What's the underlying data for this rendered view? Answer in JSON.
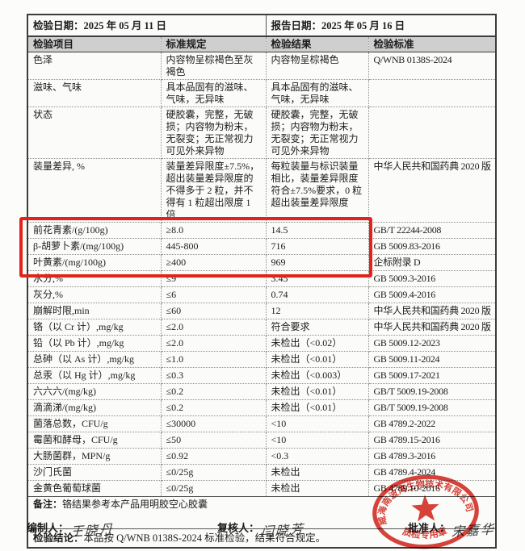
{
  "meta": {
    "inspection_date_label": "检验日期：",
    "inspection_date": "2025 年 05 月 11 日",
    "report_date_label": "报告日期：",
    "report_date": "2025 年 05 月 16 日"
  },
  "table": {
    "headers": [
      "检验项目",
      "标准规定",
      "检验结果",
      "检验标准"
    ],
    "rows": [
      {
        "item": "色泽",
        "spec": "内容物呈棕褐色至灰褐色",
        "result": "内容物呈棕褐色",
        "standard": "Q/WNB 0138S-2024"
      },
      {
        "item": "滋味、气味",
        "spec": "具本品固有的滋味、气味，无异味",
        "result": "具本品固有的滋味、气味，无异味",
        "standard": ""
      },
      {
        "item": "状态",
        "spec": "硬胶囊，完整，无破损；内容物为粉末，无裂变；无正常视力可见外来异物",
        "result": "硬胶囊，完整，无破损；内容物为粉末，无裂变；无正常视力可见外来异物",
        "standard": ""
      },
      {
        "item": "装量差异, %",
        "spec": "装量差异限度±7.5%，超出装量差异限度的不得多于 2 粒，并不得有 1 粒超出限度 1 倍",
        "result": "每粒装量与标识装量相比，装量差异限度符合±7.5%要求，0 粒超出装量差异限度",
        "standard": "中华人民共和国药典 2020 版"
      },
      {
        "item": "前花青素/(g/100g)",
        "spec": "≥8.0",
        "result": "14.5",
        "standard": "GB/T 22244-2008"
      },
      {
        "item": "β-胡萝卜素/(mg/100g)",
        "spec": "445-800",
        "result": "716",
        "standard": "GB 5009.83-2016"
      },
      {
        "item": "叶黄素/(mg/100g)",
        "spec": "≥400",
        "result": "969",
        "standard": "企标附录 D"
      },
      {
        "item": "水分,%",
        "spec": "≤9",
        "result": "3.45",
        "standard": "GB 5009.3-2016"
      },
      {
        "item": "灰分,%",
        "spec": "≤6",
        "result": "0.74",
        "standard": "GB 5009.4-2016"
      },
      {
        "item": "崩解时限,min",
        "spec": "≤60",
        "result": "12",
        "standard": "中华人民共和国药典 2020 版"
      },
      {
        "item": "铬（以 Cr 计）,mg/kg",
        "spec": "≤2.0",
        "result": "符合要求",
        "standard": "中华人民共和国药典 2020 版"
      },
      {
        "item": "铅（以 Pb 计）,mg/kg",
        "spec": "≤2.0",
        "result": "未检出（<0.02）",
        "standard": "GB 5009.12-2023"
      },
      {
        "item": "总砷（以 As 计）,mg/kg",
        "spec": "≤1.0",
        "result": "未检出（<0.01）",
        "standard": "GB 5009.11-2024"
      },
      {
        "item": "总汞（以 Hg 计）,mg/kg",
        "spec": "≤0.3",
        "result": "未检出（<0.003）",
        "standard": "GB 5009.17-2021"
      },
      {
        "item": "六六六/(mg/kg)",
        "spec": "≤0.2",
        "result": "未检出（<0.01）",
        "standard": "GB/T 5009.19-2008"
      },
      {
        "item": "滴滴涕/(mg/kg)",
        "spec": "≤0.2",
        "result": "未检出（<0.01）",
        "standard": "GB/T 5009.19-2008"
      },
      {
        "item": "菌落总数，CFU/g",
        "spec": "≤30000",
        "result": "<10",
        "standard": "GB 4789.2-2022"
      },
      {
        "item": "霉菌和酵母，CFU/g",
        "spec": "≤50",
        "result": "<10",
        "standard": "GB 4789.15-2016"
      },
      {
        "item": "大肠菌群，MPN/g",
        "spec": "≤0.92",
        "result": "<0.3",
        "standard": "GB 4789.3-2016"
      },
      {
        "item": "沙门氏菌",
        "spec": "≤0/25g",
        "result": "未检出",
        "standard": "GB 4789.4-2024"
      },
      {
        "item": "金黄色葡萄球菌",
        "spec": "≤0/25g",
        "result": "未检出",
        "standard": "GB 4789.10-2016"
      }
    ]
  },
  "highlight": {
    "color": "#e2231a",
    "rows": [
      "前花青素/(g/100g)",
      "β-胡萝卜素/(mg/100g)",
      "叶黄素/(mg/100g)"
    ]
  },
  "remark": {
    "label": "备注：",
    "text": "铬结果参考本产品用明胶空心胶囊"
  },
  "conclusion": {
    "label": "检验结论：",
    "text": "本品按 Q/WNB 0138S-2024 标准检验，结果符合规定。"
  },
  "signatures": {
    "prepared_label": "编制人：",
    "prepared_name": "王晓丹",
    "reviewed_label": "复核人：",
    "reviewed_name": "闫晓芳",
    "approved_label": "批准人：",
    "approved_name": "宋嘉华"
  },
  "stamp": {
    "company": "威海南波湾生物技术有限公司",
    "caption": "质检专用章",
    "color": "#d5281e"
  }
}
